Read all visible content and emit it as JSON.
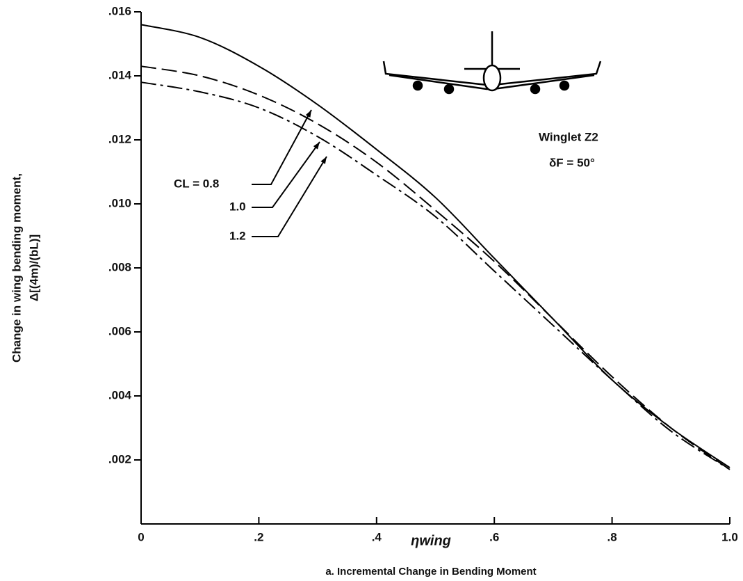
{
  "chart_data": {
    "type": "line",
    "xlabel": "ηwing",
    "caption": "a. Incremental Change in Bending Moment",
    "ylabel": [
      "Change in wing bending moment,",
      "Δ[(4m)/(bL)]"
    ],
    "annotations": [
      "Winglet Z2",
      "δF = 50°"
    ],
    "x": [
      0,
      0.1,
      0.2,
      0.3,
      0.4,
      0.5,
      0.6,
      0.7,
      0.8,
      0.9,
      1.0
    ],
    "series": [
      {
        "name": "CL = 0.8",
        "color": "#000000",
        "linestyle": "solid",
        "values": [
          0.0156,
          0.0152,
          0.0143,
          0.0131,
          0.0117,
          0.0102,
          0.0083,
          0.0064,
          0.0045,
          0.003,
          0.00176
        ]
      },
      {
        "name": "1.0",
        "color": "#000000",
        "linestyle": "dashed",
        "values": [
          0.0143,
          0.014,
          0.0134,
          0.0125,
          0.0113,
          0.0098,
          0.0082,
          0.0064,
          0.0046,
          0.003,
          0.0017
        ]
      },
      {
        "name": "1.2",
        "color": "#000000",
        "linestyle": "dashdot",
        "values": [
          0.0138,
          0.0135,
          0.013,
          0.0121,
          0.0109,
          0.0096,
          0.0079,
          0.0062,
          0.0045,
          0.0029,
          0.0017
        ]
      }
    ],
    "xlim": [
      0,
      1.0
    ],
    "xticks": [
      0,
      {
        "value": 0.2,
        "label": ".2"
      },
      {
        "value": 0.4,
        "label": ".4"
      },
      {
        "value": 0.6,
        "label": ".6"
      },
      {
        "value": 0.8,
        "label": ".8"
      },
      {
        "value": 1.0,
        "label": "1.0"
      }
    ],
    "ylim": [
      0,
      0.016
    ],
    "yticks": [
      {
        "value": 0.002,
        "label": ".002"
      },
      {
        "value": 0.004,
        "label": ".004"
      },
      {
        "value": 0.006,
        "label": ".006"
      },
      {
        "value": 0.008,
        "label": ".008"
      },
      {
        "value": 0.01,
        "label": ".010"
      },
      {
        "value": 0.012,
        "label": ".012"
      },
      {
        "value": 0.014,
        "label": ".014"
      },
      {
        "value": 0.016,
        "label": ".016"
      }
    ],
    "grid": false
  }
}
